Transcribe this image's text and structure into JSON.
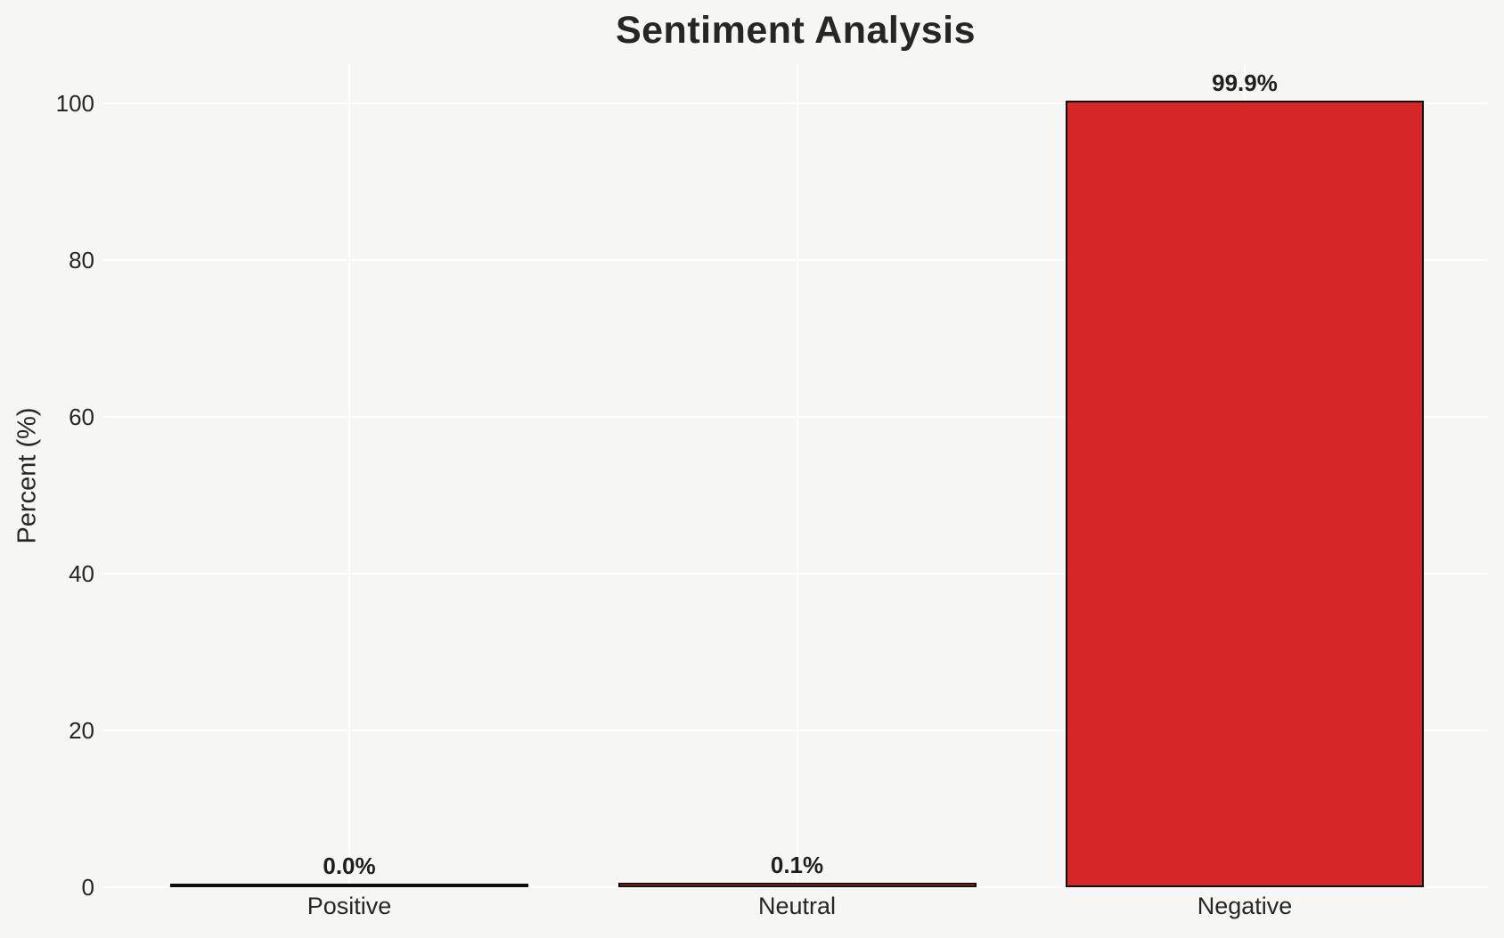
{
  "chart_data": {
    "type": "bar",
    "title": "Sentiment Analysis",
    "categories": [
      "Positive",
      "Neutral",
      "Negative"
    ],
    "values": [
      0.0,
      0.1,
      99.9
    ],
    "bar_labels": [
      "0.0%",
      "0.1%",
      "99.9%"
    ],
    "xlabel": "",
    "ylabel": "Percent (%)",
    "yticks": [
      0,
      20,
      40,
      60,
      80,
      100
    ],
    "ylim": [
      0,
      105
    ],
    "grid": "white horizontal gridlines at y-ticks and vertical gridlines at category centers, grid on",
    "legend": "none",
    "bar_color": "#d62728",
    "bar_edge_color": "#0d0d0d",
    "background_color": "#f6f6f5",
    "grid_color": "#ffffff",
    "text_color": "#262626"
  }
}
